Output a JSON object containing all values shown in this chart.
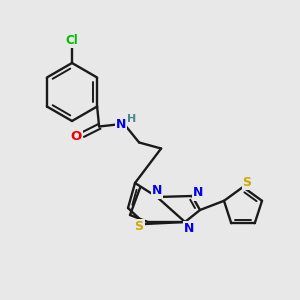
{
  "background_color": "#e8e8e8",
  "bond_color": "#1a1a1a",
  "atom_colors": {
    "Cl": "#00bb00",
    "O": "#ee0000",
    "N": "#0000ee",
    "S": "#ccaa00",
    "H": "#4a8888",
    "C": "#1a1a1a"
  },
  "figsize": [
    3.0,
    3.0
  ],
  "dpi": 100
}
